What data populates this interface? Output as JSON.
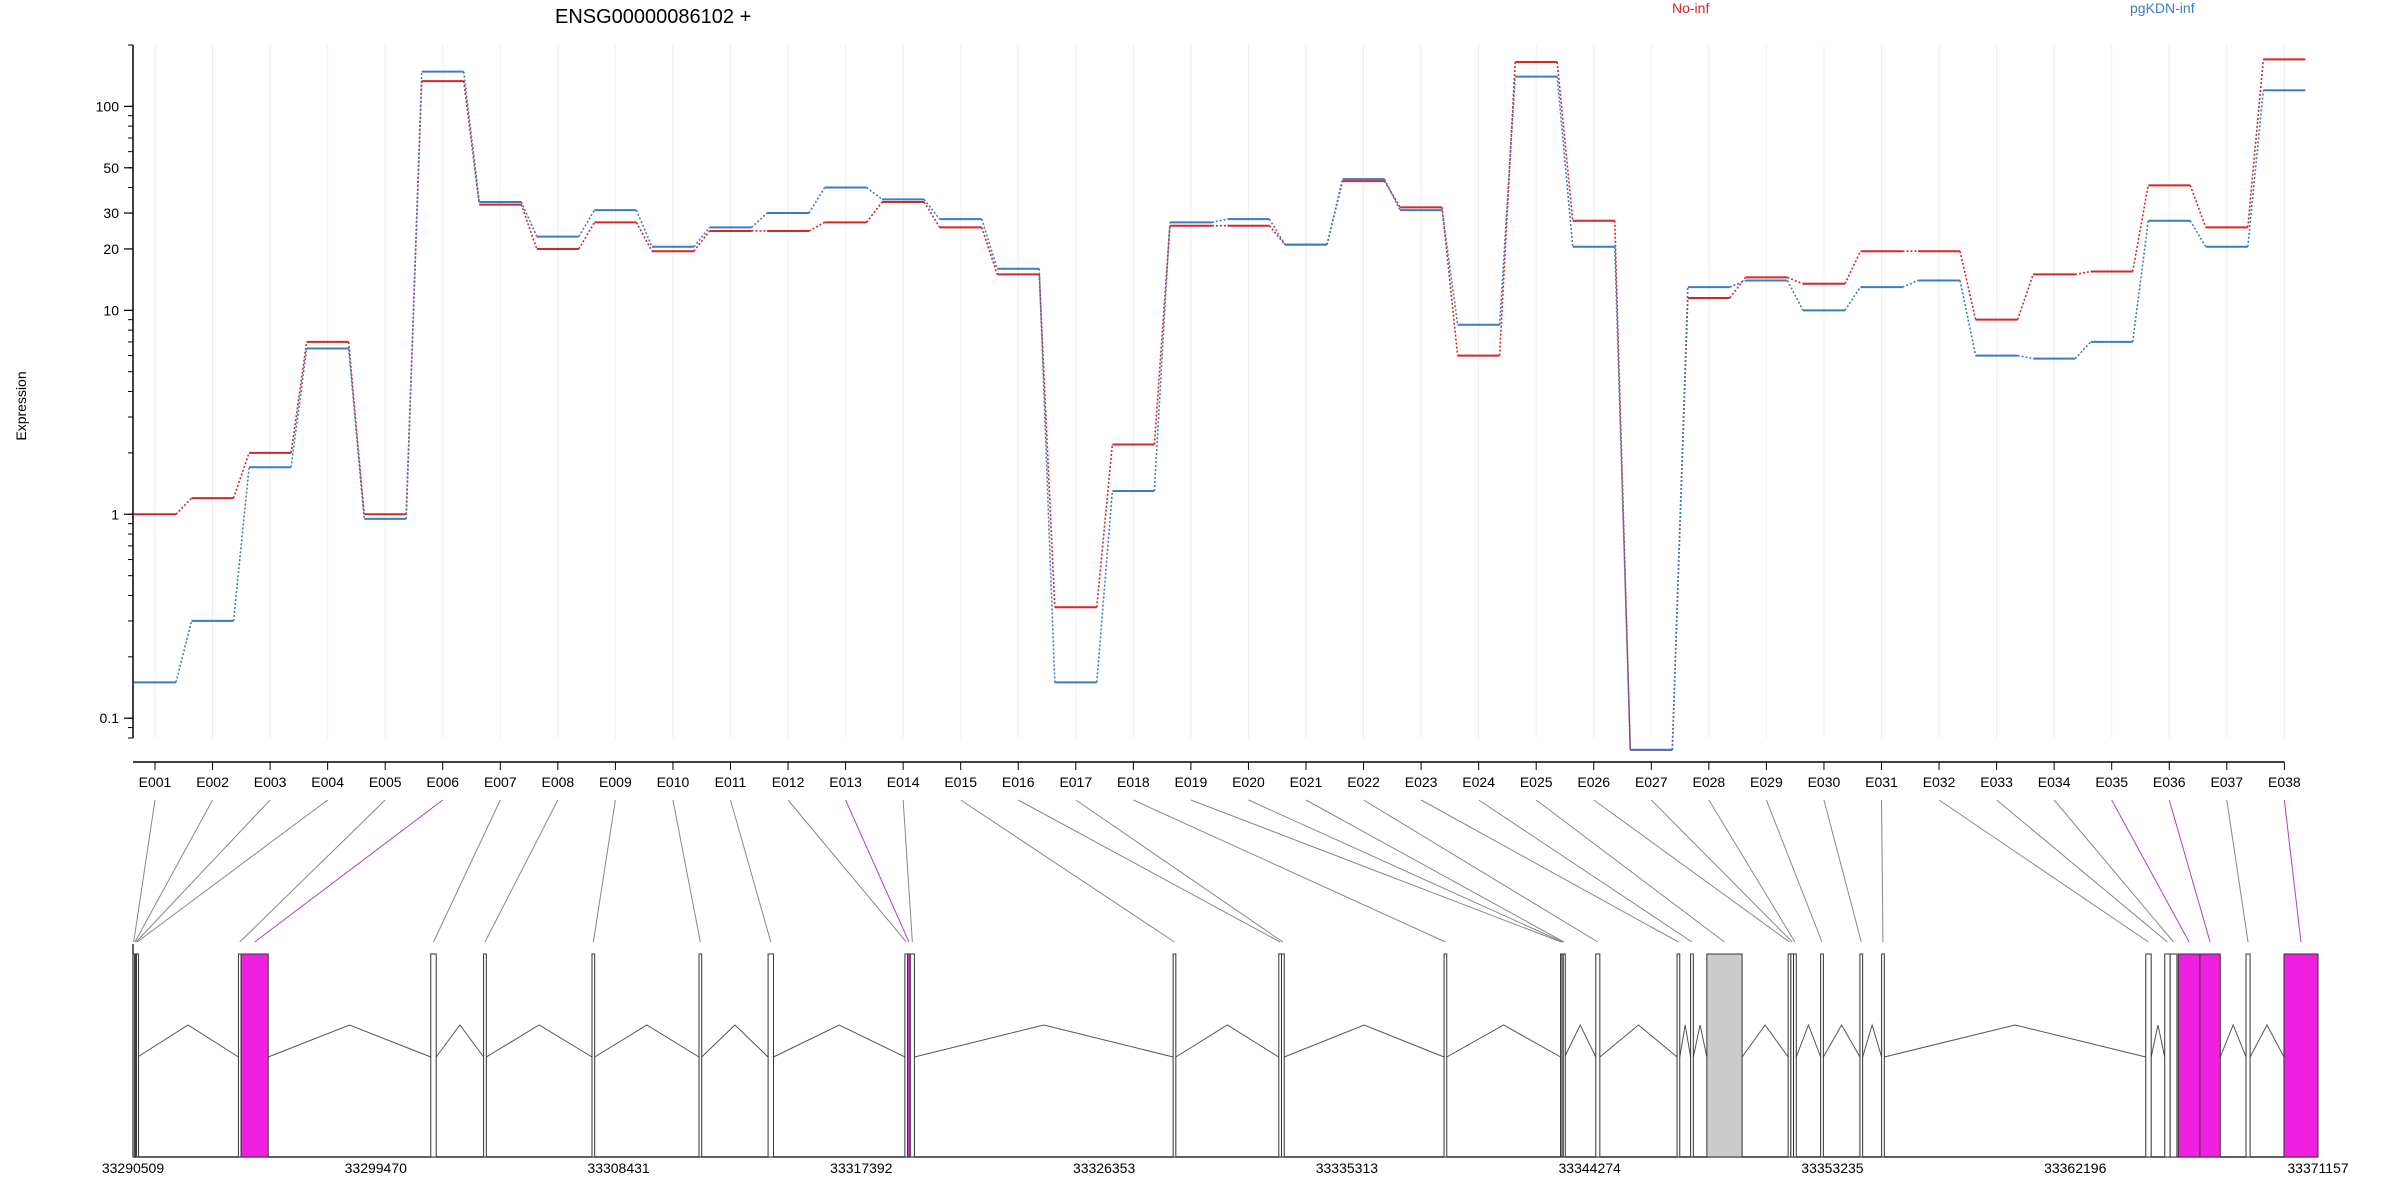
{
  "chart_data": {
    "type": "line",
    "title": "ENSG00000086102 +",
    "ylabel": "Expression",
    "xlabel": "",
    "y_scale": "log",
    "ylim": [
      0.08,
      200
    ],
    "y_ticks": [
      0.1,
      1,
      10,
      20,
      30,
      50,
      100
    ],
    "legend": [
      {
        "name": "No-inf",
        "color": "#d62728"
      },
      {
        "name": "pgKDN-inf",
        "color": "#3b7dc4"
      }
    ],
    "categories": [
      "E001",
      "E002",
      "E003",
      "E004",
      "E005",
      "E006",
      "E007",
      "E008",
      "E009",
      "E010",
      "E011",
      "E012",
      "E013",
      "E014",
      "E015",
      "E016",
      "E017",
      "E018",
      "E019",
      "E020",
      "E021",
      "E022",
      "E023",
      "E024",
      "E025",
      "E026",
      "E027",
      "E028",
      "E029",
      "E030",
      "E031",
      "E032",
      "E033",
      "E034",
      "E035",
      "E036",
      "E037",
      "E038"
    ],
    "series": [
      {
        "name": "No-inf",
        "color": "#d62728",
        "values": [
          1.0,
          1.2,
          2.0,
          7.0,
          1.0,
          133,
          33,
          20,
          27,
          19.5,
          24.5,
          24.5,
          27,
          34,
          25.5,
          15,
          0.35,
          2.2,
          26,
          26,
          21,
          43,
          32,
          6.0,
          165,
          27.5,
          0.07,
          11.5,
          14.5,
          13.5,
          19.5,
          19.5,
          9.0,
          15,
          15.5,
          41,
          25.5,
          170
        ]
      },
      {
        "name": "pgKDN-inf",
        "color": "#3b7dc4",
        "values": [
          0.15,
          0.3,
          1.7,
          6.5,
          0.95,
          148,
          34,
          23,
          31,
          20.5,
          25.5,
          30,
          40,
          35,
          28,
          16,
          0.15,
          1.3,
          27,
          28,
          21,
          44,
          31,
          8.5,
          140,
          20.5,
          0.07,
          13,
          14,
          10,
          13,
          14,
          6.0,
          5.8,
          7.0,
          27.5,
          20.5,
          120
        ]
      }
    ],
    "gene_model": {
      "coordinate_labels": [
        "33290509",
        "33299470",
        "33308431",
        "33317392",
        "33326353",
        "33335313",
        "33344274",
        "33353235",
        "33362196",
        "33371157"
      ],
      "range": [
        33290509,
        33371157
      ],
      "exons": [
        {
          "id": "E001",
          "start": 33290509,
          "end": 33290560,
          "hl": false
        },
        {
          "id": "E002",
          "start": 33290560,
          "end": 33290600,
          "hl": false
        },
        {
          "id": "E003",
          "start": 33290600,
          "end": 33290640,
          "hl": false
        },
        {
          "id": "E004",
          "start": 33290640,
          "end": 33290680,
          "hl": false
        },
        {
          "id": "E005",
          "start": 33294400,
          "end": 33294500,
          "hl": false
        },
        {
          "id": "E006",
          "start": 33294500,
          "end": 33295500,
          "hl": true
        },
        {
          "id": "E007",
          "start": 33301500,
          "end": 33301700,
          "hl": false
        },
        {
          "id": "E008",
          "start": 33303450,
          "end": 33303550,
          "hl": false
        },
        {
          "id": "E009",
          "start": 33307450,
          "end": 33307550,
          "hl": false
        },
        {
          "id": "E010",
          "start": 33311400,
          "end": 33311500,
          "hl": false
        },
        {
          "id": "E011",
          "start": 33313950,
          "end": 33314150,
          "hl": false
        },
        {
          "id": "E012",
          "start": 33319000,
          "end": 33319100,
          "hl": false
        },
        {
          "id": "E013",
          "start": 33319100,
          "end": 33319200,
          "hl": true
        },
        {
          "id": "E014",
          "start": 33319200,
          "end": 33319350,
          "hl": false
        },
        {
          "id": "E015",
          "start": 33328900,
          "end": 33329000,
          "hl": false
        },
        {
          "id": "E016",
          "start": 33332800,
          "end": 33332900,
          "hl": false
        },
        {
          "id": "E017",
          "start": 33332900,
          "end": 33333000,
          "hl": false
        },
        {
          "id": "E018",
          "start": 33338900,
          "end": 33339000,
          "hl": false
        },
        {
          "id": "E019",
          "start": 33343200,
          "end": 33343250,
          "hl": false
        },
        {
          "id": "E020",
          "start": 33343250,
          "end": 33343300,
          "hl": false
        },
        {
          "id": "E021",
          "start": 33343300,
          "end": 33343350,
          "hl": false
        },
        {
          "id": "E022",
          "start": 33344500,
          "end": 33344650,
          "hl": false
        },
        {
          "id": "E023",
          "start": 33347500,
          "end": 33347600,
          "hl": false
        },
        {
          "id": "E024",
          "start": 33348000,
          "end": 33348100,
          "hl": false
        },
        {
          "id": "E025",
          "start": 33348600,
          "end": 33349900,
          "hl": false
        },
        {
          "id": "E026",
          "start": 33351600,
          "end": 33351700,
          "hl": false
        },
        {
          "id": "E027",
          "start": 33351700,
          "end": 33351800,
          "hl": false
        },
        {
          "id": "E028",
          "start": 33351800,
          "end": 33351900,
          "hl": false
        },
        {
          "id": "E029",
          "start": 33352800,
          "end": 33352900,
          "hl": false
        },
        {
          "id": "E030",
          "start": 33354250,
          "end": 33354350,
          "hl": false
        },
        {
          "id": "E031",
          "start": 33355050,
          "end": 33355150,
          "hl": false
        },
        {
          "id": "E032",
          "start": 33364800,
          "end": 33365000,
          "hl": false
        },
        {
          "id": "E033",
          "start": 33365500,
          "end": 33365700,
          "hl": false
        },
        {
          "id": "E034",
          "start": 33365700,
          "end": 33365950,
          "hl": false
        },
        {
          "id": "E035",
          "start": 33366000,
          "end": 33366800,
          "hl": true
        },
        {
          "id": "E036",
          "start": 33366800,
          "end": 33367550,
          "hl": true
        },
        {
          "id": "E037",
          "start": 33368500,
          "end": 33368650,
          "hl": false
        },
        {
          "id": "E038",
          "start": 33369900,
          "end": 33371157,
          "hl": true
        }
      ]
    }
  }
}
